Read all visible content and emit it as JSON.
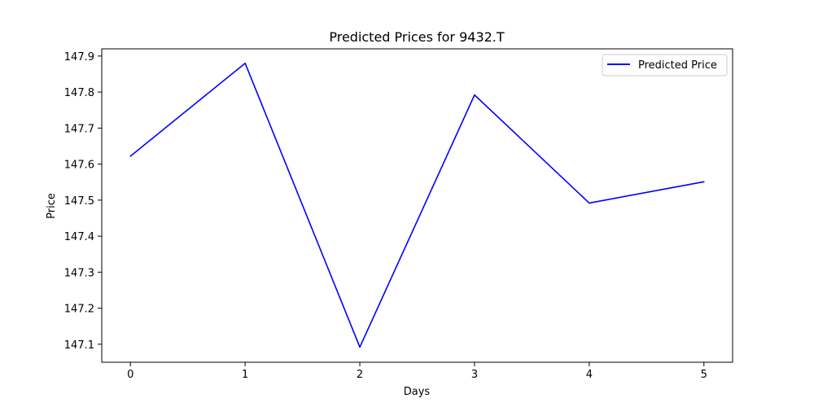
{
  "chart_data": {
    "type": "line",
    "title": "Predicted Prices for 9432.T",
    "xlabel": "Days",
    "ylabel": "Price",
    "x": [
      0,
      1,
      2,
      3,
      4,
      5
    ],
    "series": [
      {
        "name": "Predicted Price",
        "color": "#0000ff",
        "values": [
          147.622,
          147.88,
          147.092,
          147.792,
          147.492,
          147.551
        ]
      }
    ],
    "xlim": [
      -0.25,
      5.25
    ],
    "ylim": [
      147.05,
      147.92
    ],
    "x_ticks": [
      "0",
      "1",
      "2",
      "3",
      "4",
      "5"
    ],
    "y_ticks": [
      "147.1",
      "147.2",
      "147.3",
      "147.4",
      "147.5",
      "147.6",
      "147.7",
      "147.8",
      "147.9"
    ],
    "grid": false,
    "legend_position": "top-right"
  }
}
